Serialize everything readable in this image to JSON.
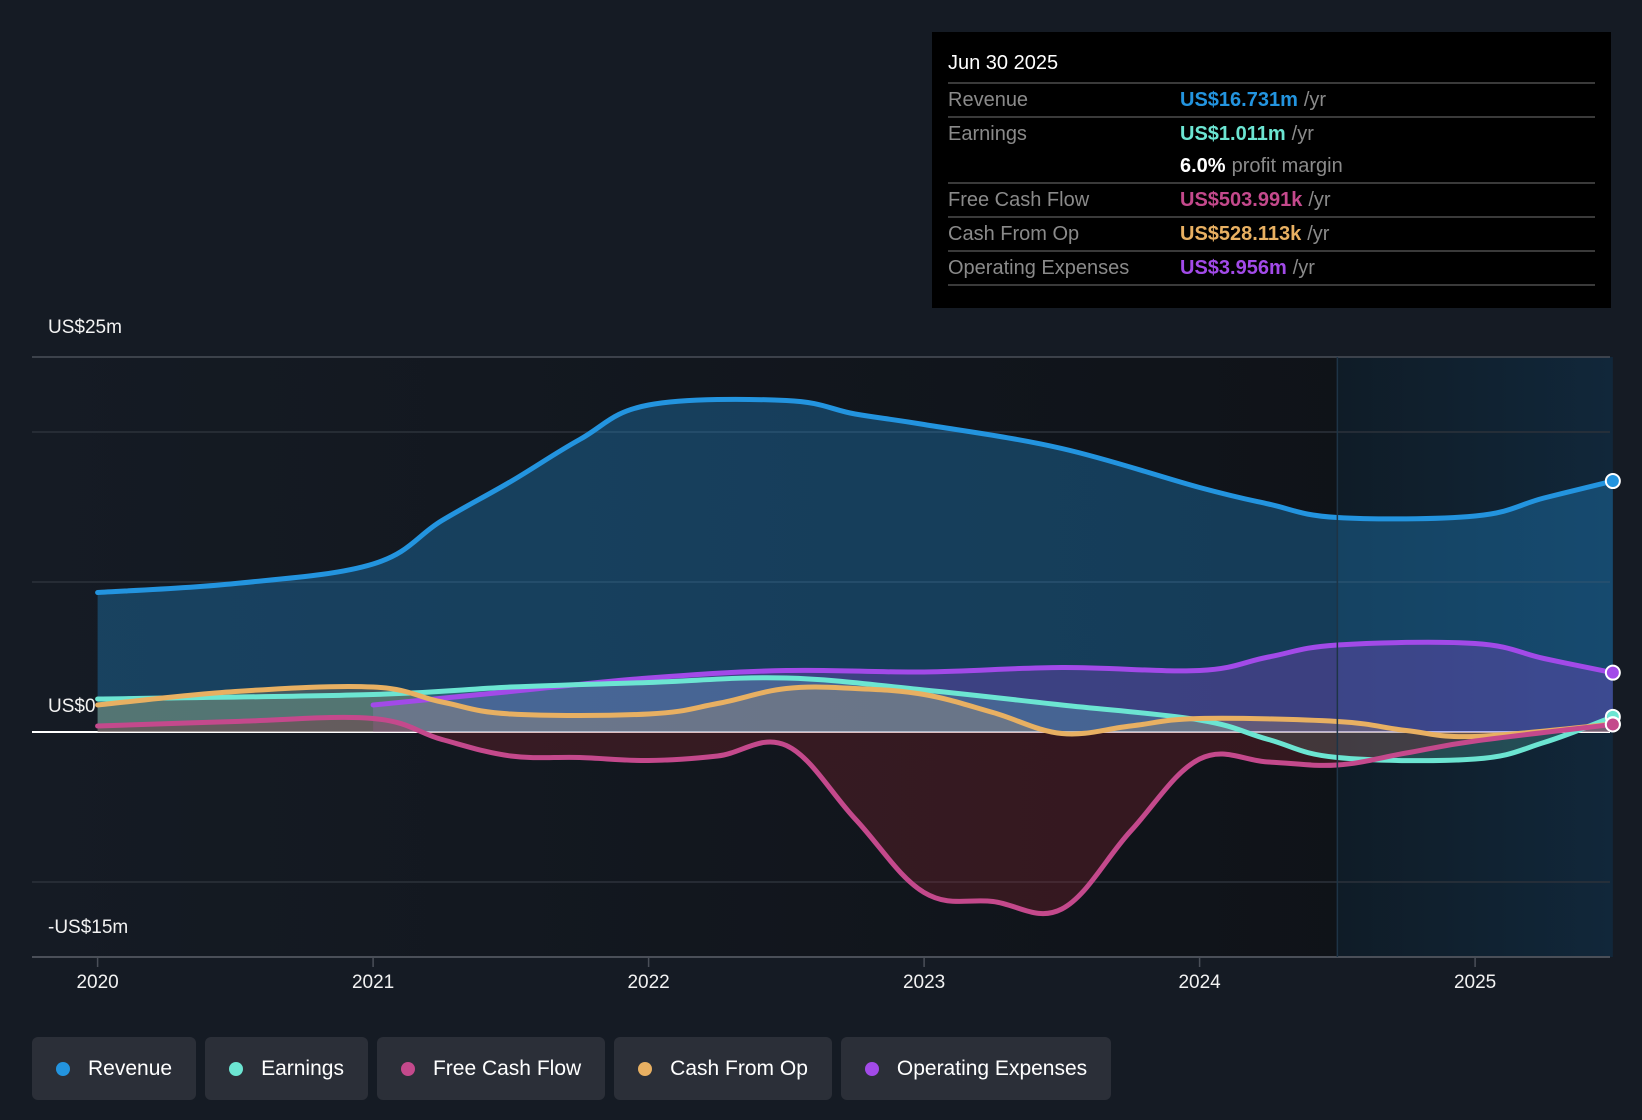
{
  "tooltip": {
    "date": "Jun 30 2025",
    "rows": [
      {
        "label": "Revenue",
        "value": "US$16.731m",
        "unit": "/yr",
        "color": "#2394df"
      },
      {
        "label": "Earnings",
        "value": "US$1.011m",
        "unit": "/yr",
        "color": "#6ce5d2"
      },
      {
        "label": "",
        "value": "6.0%",
        "unit": "profit margin",
        "color": "#ffffff"
      },
      {
        "label": "Free Cash Flow",
        "value": "US$503.991k",
        "unit": "/yr",
        "color": "#c4498c"
      },
      {
        "label": "Cash From Op",
        "value": "US$528.113k",
        "unit": "/yr",
        "color": "#e8b062"
      },
      {
        "label": "Operating Expenses",
        "value": "US$3.956m",
        "unit": "/yr",
        "color": "#a24ae8"
      }
    ]
  },
  "legend": [
    {
      "label": "Revenue",
      "color": "#2394df"
    },
    {
      "label": "Earnings",
      "color": "#6ce5d2"
    },
    {
      "label": "Free Cash Flow",
      "color": "#c4498c"
    },
    {
      "label": "Cash From Op",
      "color": "#e8b062"
    },
    {
      "label": "Operating Expenses",
      "color": "#a24ae8"
    }
  ],
  "chart_data": {
    "type": "line",
    "title": "",
    "xlabel": "",
    "ylabel": "",
    "y_tick_labels": [
      "US$25m",
      "US$0",
      "-US$15m"
    ],
    "y_ticks": [
      25,
      0,
      -15
    ],
    "gridlines": [
      25,
      20,
      10,
      0,
      -10,
      -15
    ],
    "ylim": [
      -15,
      25
    ],
    "x_tick_labels": [
      "2020",
      "2021",
      "2022",
      "2023",
      "2024",
      "2025"
    ],
    "x_ticks": [
      2020,
      2021,
      2022,
      2023,
      2024,
      2025
    ],
    "xlim": [
      2019.77,
      2025.5
    ],
    "highlight_range": [
      2024.5,
      2025.5
    ],
    "grid": true,
    "legend_position": "bottom-left",
    "units": "US$ millions per year",
    "series": [
      {
        "name": "Revenue",
        "color": "#2394df",
        "fill": true,
        "x": [
          2020,
          2020.5,
          2021,
          2021.25,
          2021.5,
          2021.75,
          2022,
          2022.5,
          2022.75,
          2023,
          2023.5,
          2024,
          2024.25,
          2024.5,
          2025,
          2025.25,
          2025.5
        ],
        "values": [
          9.3,
          9.9,
          11.2,
          14.1,
          16.7,
          19.5,
          21.8,
          22.1,
          21.2,
          20.5,
          18.9,
          16.3,
          15.2,
          14.3,
          14.4,
          15.6,
          16.731
        ]
      },
      {
        "name": "Operating Expenses",
        "color": "#a24ae8",
        "fill": true,
        "x": [
          2021,
          2021.5,
          2022,
          2022.5,
          2023,
          2023.5,
          2024,
          2024.25,
          2024.5,
          2025,
          2025.25,
          2025.5
        ],
        "values": [
          1.8,
          2.7,
          3.6,
          4.1,
          4.0,
          4.3,
          4.1,
          5.0,
          5.8,
          5.9,
          4.9,
          3.956
        ]
      },
      {
        "name": "Earnings",
        "color": "#6ce5d2",
        "fill": true,
        "x": [
          2020,
          2021,
          2021.5,
          2022,
          2022.5,
          2023,
          2023.5,
          2024,
          2024.25,
          2024.5,
          2025,
          2025.25,
          2025.5
        ],
        "values": [
          2.2,
          2.5,
          3.0,
          3.3,
          3.6,
          2.8,
          1.8,
          0.8,
          -0.5,
          -1.7,
          -1.8,
          -0.7,
          1.011
        ]
      },
      {
        "name": "Cash From Op",
        "color": "#e8b062",
        "fill": true,
        "x": [
          2020,
          2020.5,
          2021,
          2021.25,
          2021.5,
          2022,
          2022.25,
          2022.5,
          2022.75,
          2023,
          2023.25,
          2023.5,
          2023.75,
          2024,
          2024.5,
          2024.75,
          2025,
          2025.5
        ],
        "values": [
          1.8,
          2.7,
          3.0,
          2.0,
          1.2,
          1.2,
          1.9,
          2.9,
          2.9,
          2.5,
          1.3,
          -0.1,
          0.4,
          0.9,
          0.7,
          0.1,
          -0.3,
          0.528
        ]
      },
      {
        "name": "Free Cash Flow",
        "color": "#c4498c",
        "fill": true,
        "x": [
          2020,
          2020.5,
          2021,
          2021.25,
          2021.5,
          2021.75,
          2022,
          2022.25,
          2022.5,
          2022.75,
          2023,
          2023.25,
          2023.5,
          2023.75,
          2024,
          2024.25,
          2024.5,
          2024.75,
          2025,
          2025.5
        ],
        "values": [
          0.4,
          0.7,
          0.9,
          -0.5,
          -1.6,
          -1.7,
          -1.9,
          -1.6,
          -0.9,
          -5.8,
          -10.7,
          -11.3,
          -11.8,
          -6.6,
          -1.8,
          -2.0,
          -2.2,
          -1.4,
          -0.6,
          0.504
        ]
      }
    ]
  }
}
